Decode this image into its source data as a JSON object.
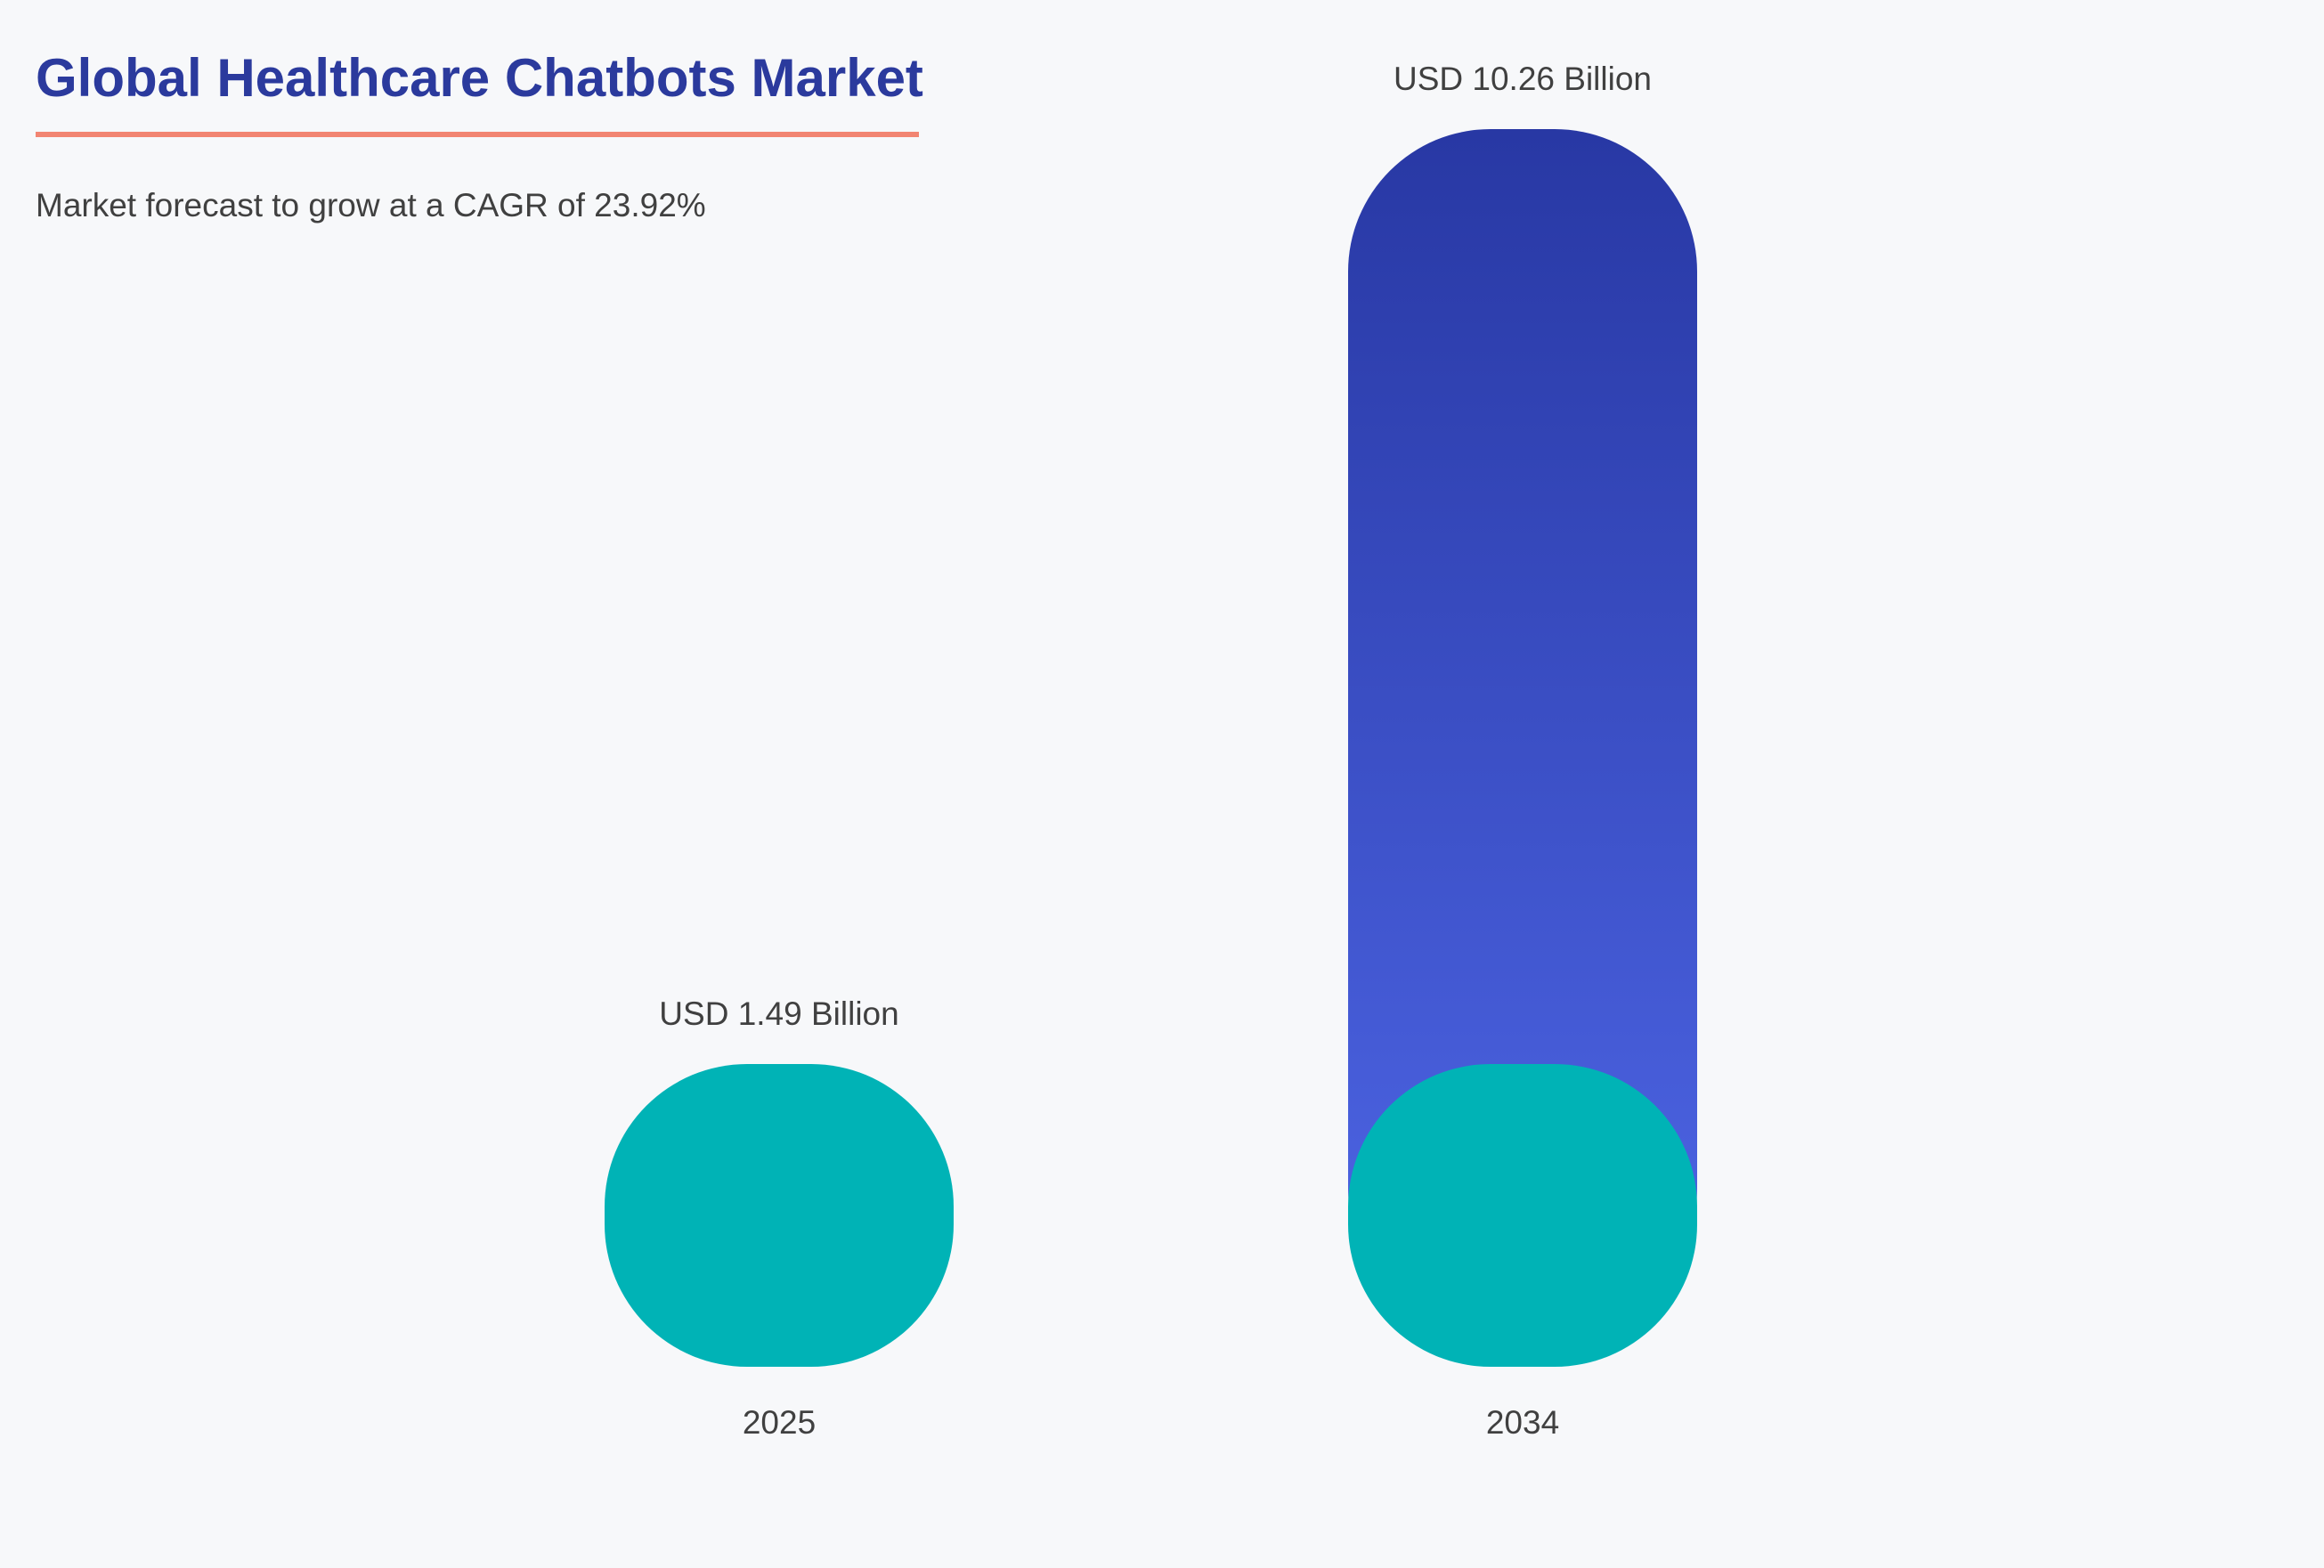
{
  "title": "Global Healthcare Chatbots Market",
  "subtitle": "Market forecast to grow at a CAGR of 23.92%",
  "colors": {
    "title": "#2b3a9d",
    "underline": "#f28572",
    "base_segment": "#00b3b6",
    "gradient_top": "#2838a4",
    "gradient_bottom": "#4e66e6",
    "text": "#404040",
    "background": "#f7f8fa"
  },
  "chart_data": {
    "type": "bar",
    "categories": [
      "2025",
      "2034"
    ],
    "values": [
      1.49,
      10.26
    ],
    "value_labels": [
      "USD 1.49 Billion",
      "USD 10.26 Billion"
    ],
    "unit": "USD Billion",
    "grid": false,
    "legend": "none"
  }
}
